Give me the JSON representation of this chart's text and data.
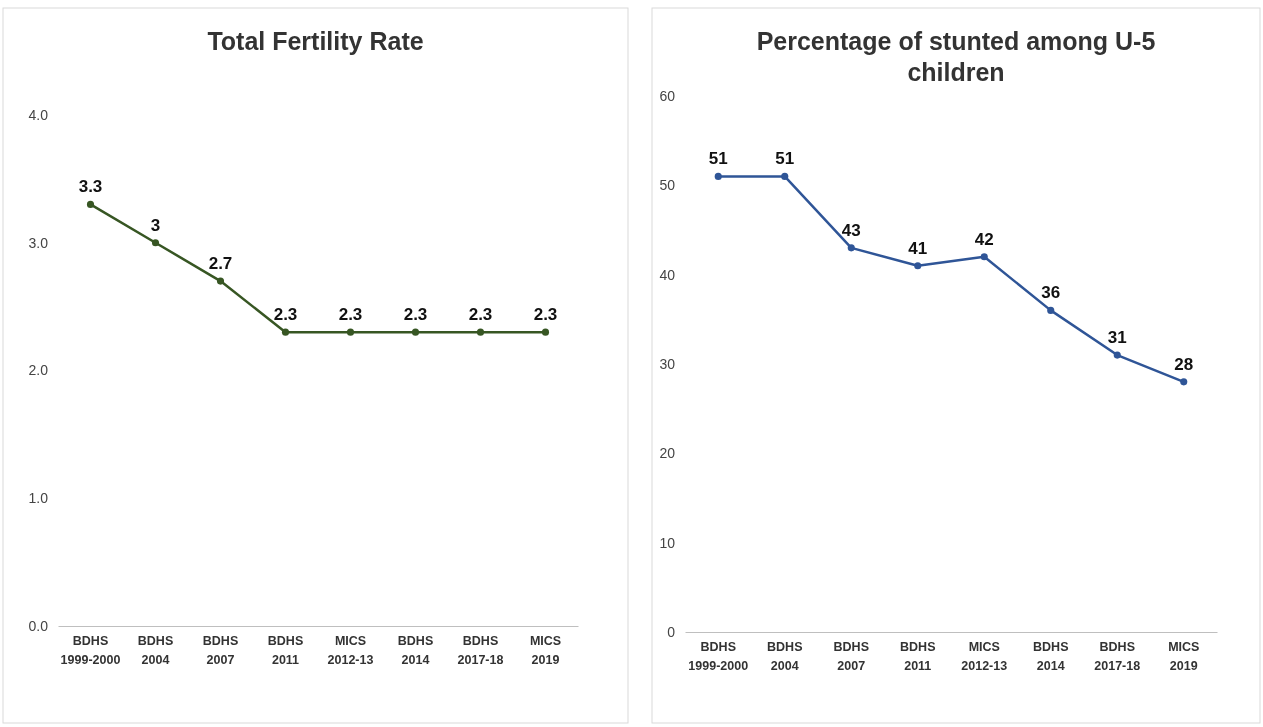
{
  "chart_data": [
    {
      "type": "line",
      "title": "Total Fertility Rate",
      "categories": [
        "BDHS 1999-2000",
        "BDHS 2004",
        "BDHS 2007",
        "BDHS 2011",
        "MICS 2012-13",
        "BDHS 2014",
        "BDHS 2017-18",
        "MICS 2019"
      ],
      "series": [
        {
          "color": "#375623",
          "values": [
            3.3,
            3,
            2.7,
            2.3,
            2.3,
            2.3,
            2.3,
            2.3
          ]
        }
      ],
      "ylim": [
        0,
        4
      ],
      "yticks": [
        {
          "value": 0,
          "label": "0.0"
        },
        {
          "value": 1,
          "label": "1.0"
        },
        {
          "value": 2,
          "label": "2.0"
        },
        {
          "value": 3,
          "label": "3.0"
        },
        {
          "value": 4,
          "label": "4.0"
        }
      ],
      "data_labels": true,
      "marker": "circle",
      "line_style": "solid",
      "grid": false
    },
    {
      "type": "line",
      "title": "Percentage of stunted among U-5 children",
      "categories": [
        "BDHS 1999-2000",
        "BDHS 2004",
        "BDHS 2007",
        "BDHS 2011",
        "MICS 2012-13",
        "BDHS 2014",
        "BDHS 2017-18",
        "MICS 2019"
      ],
      "series": [
        {
          "color": "#2f5597",
          "values": [
            51,
            51,
            43,
            41,
            42,
            36,
            31,
            28
          ]
        }
      ],
      "ylim": [
        0,
        60
      ],
      "yticks": [
        0,
        10,
        20,
        30,
        40,
        50,
        60
      ],
      "data_labels": true,
      "marker": "circle",
      "line_style": "solid",
      "grid": false
    }
  ]
}
